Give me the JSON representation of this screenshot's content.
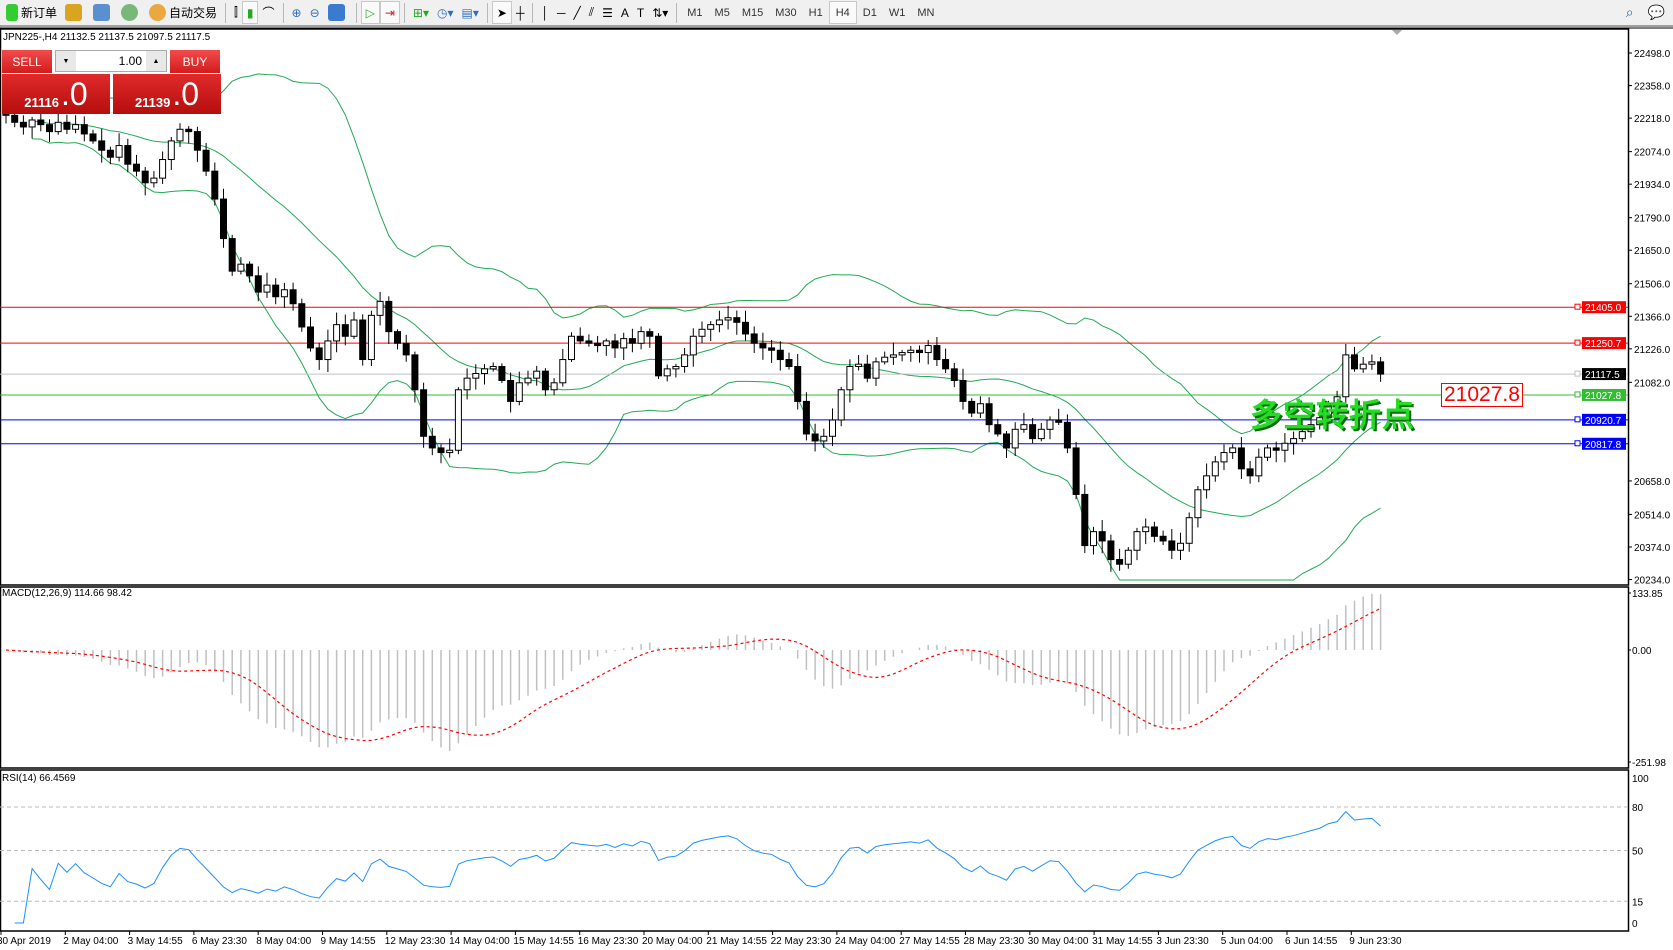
{
  "toolbar": {
    "new_order": "新订单",
    "auto_trading": "自动交易",
    "icons": [
      "new-order-icon",
      "market-watch-icon",
      "navigator-icon",
      "signals-icon",
      "auto-trading-icon",
      "bar-chart-icon",
      "candlestick-icon",
      "line-chart-icon",
      "zoom-in-icon",
      "zoom-out-icon",
      "tile-windows-icon",
      "auto-scroll-icon",
      "chart-shift-icon",
      "indicators-icon",
      "periods-icon",
      "templates-icon",
      "cursor-icon",
      "crosshair-icon",
      "vertical-line-icon",
      "horizontal-line-icon",
      "trendline-icon",
      "equidistant-channel-icon",
      "fibonacci-icon",
      "text-icon",
      "text-label-icon",
      "arrows-icon"
    ],
    "timeframes": [
      "M1",
      "M5",
      "M15",
      "M30",
      "H1",
      "H4",
      "D1",
      "W1",
      "MN"
    ],
    "active_timeframe": "H4"
  },
  "chart": {
    "title": "JPN225-,H4  21132.5 21137.5 21097.5 21117.5",
    "trade": {
      "sell": "SELL",
      "buy": "BUY",
      "lot": "1.00",
      "sell_main": "21116",
      "sell_frac": ".0",
      "buy_main": "21139",
      "buy_frac": ".0"
    },
    "annotation": "多空转折点",
    "annotation_price": "21027.8",
    "price_ticks": [
      "22498.0",
      "22358.0",
      "22218.0",
      "22074.0",
      "21934.0",
      "21790.0",
      "21650.0",
      "21506.0",
      "21366.0",
      "21226.0",
      "21082.0",
      "20658.0",
      "20514.0",
      "20374.0",
      "20234.0"
    ],
    "levels": [
      {
        "price": 21405.0,
        "label": "21405.0",
        "color": "#ff0000"
      },
      {
        "price": 21250.7,
        "label": "21250.7",
        "color": "#ff0000"
      },
      {
        "price": 21117.5,
        "label": "21117.5",
        "color": "#000000",
        "line": "#c0c0c0"
      },
      {
        "price": 21027.8,
        "label": "21027.8",
        "color": "#33bb33"
      },
      {
        "price": 20920.7,
        "label": "20920.7",
        "color": "#0000ff"
      },
      {
        "price": 20817.8,
        "label": "20817.8",
        "color": "#0000ff"
      }
    ],
    "time_labels": [
      "30 Apr 2019",
      "2 May 04:00",
      "3 May 14:55",
      "6 May 23:30",
      "8 May 04:00",
      "9 May 14:55",
      "12 May 23:30",
      "14 May 04:00",
      "15 May 14:55",
      "16 May 23:30",
      "20 May 04:00",
      "21 May 14:55",
      "22 May 23:30",
      "24 May 04:00",
      "27 May 14:55",
      "28 May 23:30",
      "30 May 04:00",
      "31 May 14:55",
      "3 Jun 23:30",
      "5 Jun 04:00",
      "6 Jun 14:55",
      "9 Jun 23:30"
    ],
    "closes": [
      22230,
      22200,
      22180,
      22210,
      22190,
      22160,
      22200,
      22170,
      22190,
      22150,
      22120,
      22080,
      22050,
      22100,
      22020,
      21990,
      21940,
      21960,
      22040,
      22120,
      22170,
      22160,
      22080,
      21990,
      21870,
      21700,
      21560,
      21590,
      21540,
      21470,
      21500,
      21450,
      21480,
      21420,
      21320,
      21230,
      21180,
      21260,
      21330,
      21280,
      21350,
      21180,
      21370,
      21430,
      21300,
      21250,
      21200,
      21050,
      20850,
      20800,
      20780,
      20790,
      21050,
      21100,
      21120,
      21140,
      21150,
      21090,
      21000,
      21080,
      21100,
      21130,
      21050,
      21080,
      21180,
      21280,
      21260,
      21250,
      21240,
      21260,
      21230,
      21270,
      21250,
      21300,
      21280,
      21110,
      21140,
      21150,
      21200,
      21280,
      21310,
      21330,
      21350,
      21360,
      21340,
      21290,
      21250,
      21230,
      21220,
      21180,
      21150,
      21000,
      20860,
      20830,
      20850,
      20920,
      21050,
      21150,
      21160,
      21100,
      21170,
      21190,
      21200,
      21210,
      21220,
      21210,
      21240,
      21180,
      21140,
      21090,
      21000,
      20950,
      20990,
      20900,
      20860,
      20800,
      20880,
      20900,
      20840,
      20880,
      20920,
      20910,
      20800,
      20600,
      20380,
      20440,
      20400,
      20320,
      20300,
      20360,
      20440,
      20460,
      20420,
      20400,
      20360,
      20390,
      20500,
      20620,
      20680,
      20740,
      20780,
      20800,
      20710,
      20680,
      20760,
      20800,
      20790,
      20820,
      20840,
      20870,
      20900,
      20930,
      20990,
      21020,
      21200,
      21140,
      21160,
      21170,
      21117.5
    ],
    "price_range": [
      20234,
      22498
    ],
    "colors": {
      "bands": "#22aa55",
      "bull": "#ffffff",
      "bear": "#000000"
    }
  },
  "macd": {
    "label": "MACD(12,26,9) 114.66 98.42",
    "top": "133.85",
    "zero": "0.00",
    "bottom": "-251.98",
    "range": [
      -251.98,
      133.85
    ],
    "hist_color": "#c0c0c0",
    "signal_color": "#ff0000"
  },
  "rsi": {
    "label": "RSI(14) 66.4569",
    "ticks": [
      "100",
      "80",
      "50",
      "15",
      "0"
    ],
    "color": "#1e90ff"
  }
}
